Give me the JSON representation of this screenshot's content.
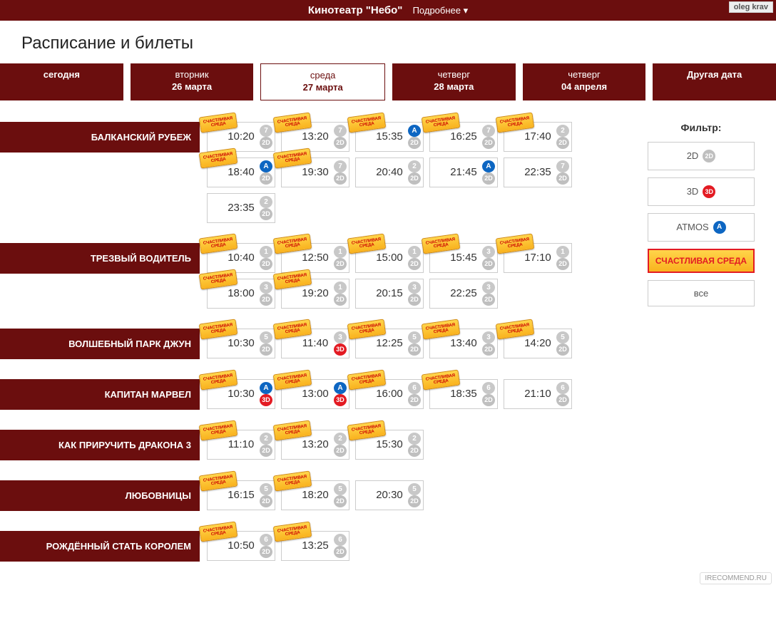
{
  "header": {
    "title": "Кинотеатр \"Небо\"",
    "more": "Подробнее ▾",
    "user": "oleg krav"
  },
  "page_title": "Расписание и билеты",
  "date_tabs": [
    {
      "day": "",
      "date": "сегодня",
      "selected": false
    },
    {
      "day": "вторник",
      "date": "26 марта",
      "selected": false
    },
    {
      "day": "среда",
      "date": "27 марта",
      "selected": true
    },
    {
      "day": "четверг",
      "date": "28 марта",
      "selected": false
    },
    {
      "day": "четверг",
      "date": "04 апреля",
      "selected": false
    },
    {
      "day": "",
      "date": "Другая дата",
      "selected": false
    }
  ],
  "filters": {
    "title": "Фильтр:",
    "items": [
      {
        "label": "2D",
        "badge": "2D",
        "badge_class": "fmt-2d"
      },
      {
        "label": "3D",
        "badge": "3D",
        "badge_class": "fmt-3d"
      },
      {
        "label": "ATMOS",
        "badge": "A",
        "badge_class": "atmos"
      }
    ],
    "promo": "СЧАСТЛИВАЯ СРЕДА",
    "all": "все"
  },
  "promo_tag_text": "СЧАСТЛИВАЯ СРЕДА",
  "movies": [
    {
      "title": "БАЛКАНСКИЙ РУБЕЖ",
      "shows": [
        {
          "time": "10:20",
          "hall": "7",
          "fmt": "2D",
          "promo": true
        },
        {
          "time": "13:20",
          "hall": "7",
          "fmt": "2D",
          "promo": true
        },
        {
          "time": "15:35",
          "hall": "A",
          "fmt": "2D",
          "promo": true,
          "atmos": true
        },
        {
          "time": "16:25",
          "hall": "7",
          "fmt": "2D",
          "promo": true
        },
        {
          "time": "17:40",
          "hall": "2",
          "fmt": "2D",
          "promo": true
        },
        {
          "time": "18:40",
          "hall": "A",
          "fmt": "2D",
          "promo": true,
          "atmos": true
        },
        {
          "time": "19:30",
          "hall": "7",
          "fmt": "2D",
          "promo": true
        },
        {
          "time": "20:40",
          "hall": "2",
          "fmt": "2D",
          "promo": false
        },
        {
          "time": "21:45",
          "hall": "A",
          "fmt": "2D",
          "promo": false,
          "atmos": true
        },
        {
          "time": "22:35",
          "hall": "7",
          "fmt": "2D",
          "promo": false
        },
        {
          "time": "23:35",
          "hall": "2",
          "fmt": "2D",
          "promo": false
        }
      ]
    },
    {
      "title": "ТРЕЗВЫЙ ВОДИТЕЛЬ",
      "shows": [
        {
          "time": "10:40",
          "hall": "1",
          "fmt": "2D",
          "promo": true
        },
        {
          "time": "12:50",
          "hall": "1",
          "fmt": "2D",
          "promo": true
        },
        {
          "time": "15:00",
          "hall": "1",
          "fmt": "2D",
          "promo": true
        },
        {
          "time": "15:45",
          "hall": "3",
          "fmt": "2D",
          "promo": true
        },
        {
          "time": "17:10",
          "hall": "1",
          "fmt": "2D",
          "promo": true
        },
        {
          "time": "18:00",
          "hall": "3",
          "fmt": "2D",
          "promo": true
        },
        {
          "time": "19:20",
          "hall": "1",
          "fmt": "2D",
          "promo": true
        },
        {
          "time": "20:15",
          "hall": "3",
          "fmt": "2D",
          "promo": false
        },
        {
          "time": "22:25",
          "hall": "3",
          "fmt": "2D",
          "promo": false
        }
      ]
    },
    {
      "title": "ВОЛШЕБНЫЙ ПАРК ДЖУН",
      "shows": [
        {
          "time": "10:30",
          "hall": "5",
          "fmt": "2D",
          "promo": true
        },
        {
          "time": "11:40",
          "hall": "3",
          "fmt": "3D",
          "promo": true
        },
        {
          "time": "12:25",
          "hall": "5",
          "fmt": "2D",
          "promo": true
        },
        {
          "time": "13:40",
          "hall": "3",
          "fmt": "2D",
          "promo": true
        },
        {
          "time": "14:20",
          "hall": "5",
          "fmt": "2D",
          "promo": true
        }
      ]
    },
    {
      "title": "КАПИТАН МАРВЕЛ",
      "shows": [
        {
          "time": "10:30",
          "hall": "A",
          "fmt": "3D",
          "promo": true,
          "atmos": true
        },
        {
          "time": "13:00",
          "hall": "A",
          "fmt": "3D",
          "promo": true,
          "atmos": true
        },
        {
          "time": "16:00",
          "hall": "6",
          "fmt": "2D",
          "promo": true
        },
        {
          "time": "18:35",
          "hall": "6",
          "fmt": "2D",
          "promo": true
        },
        {
          "time": "21:10",
          "hall": "6",
          "fmt": "2D",
          "promo": false
        }
      ]
    },
    {
      "title": "КАК ПРИРУЧИТЬ ДРАКОНА 3",
      "shows": [
        {
          "time": "11:10",
          "hall": "2",
          "fmt": "2D",
          "promo": true
        },
        {
          "time": "13:20",
          "hall": "2",
          "fmt": "2D",
          "promo": true
        },
        {
          "time": "15:30",
          "hall": "2",
          "fmt": "2D",
          "promo": true
        }
      ]
    },
    {
      "title": "ЛЮБОВНИЦЫ",
      "shows": [
        {
          "time": "16:15",
          "hall": "5",
          "fmt": "2D",
          "promo": true
        },
        {
          "time": "18:20",
          "hall": "5",
          "fmt": "2D",
          "promo": true
        },
        {
          "time": "20:30",
          "hall": "5",
          "fmt": "2D",
          "promo": false
        }
      ]
    },
    {
      "title": "РОЖДЁННЫЙ СТАТЬ КОРОЛЕМ",
      "shows": [
        {
          "time": "10:50",
          "hall": "6",
          "fmt": "2D",
          "promo": true
        },
        {
          "time": "13:25",
          "hall": "6",
          "fmt": "2D",
          "promo": true
        }
      ]
    }
  ],
  "watermark": "IRECOMMEND.RU",
  "colors": {
    "brand": "#6b0e0e",
    "promo_bg": "#f9b21e",
    "promo_border": "#e31b23",
    "atmos": "#0d66c2",
    "fmt3d": "#e31b23"
  }
}
